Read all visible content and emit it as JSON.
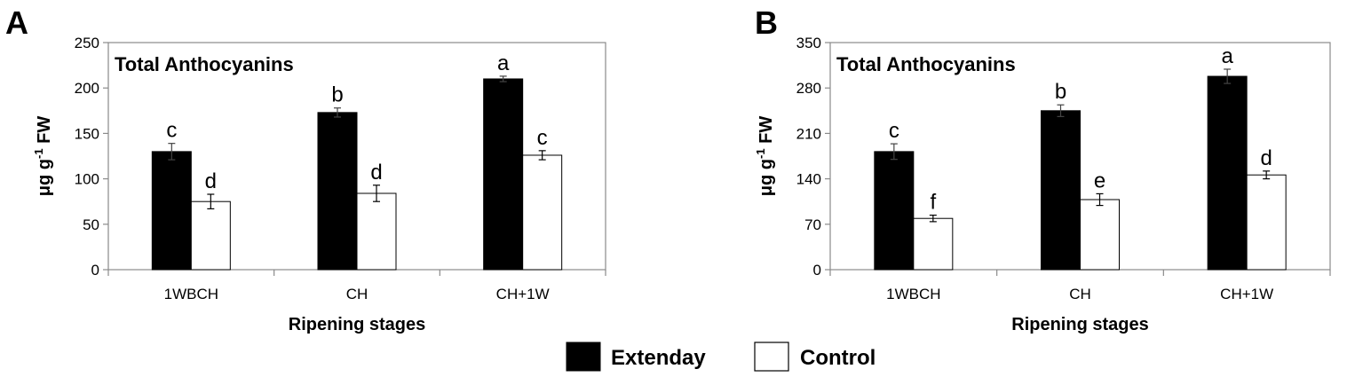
{
  "chart_data": [
    {
      "type": "bar",
      "panel": "A",
      "title": "Total Anthocyanins",
      "xlabel": "Ripening stages",
      "ylabel": "μg g-1 FW",
      "ylabel_parts": {
        "main": "μg g",
        "sup": "-1",
        "tail": " FW"
      },
      "ylim": [
        0,
        250
      ],
      "yticks": [
        0,
        50,
        100,
        150,
        200,
        250
      ],
      "categories": [
        "1WBCH",
        "CH",
        "CH+1W"
      ],
      "series": [
        {
          "name": "Extenday",
          "values": [
            130,
            173,
            210
          ],
          "errors": [
            9,
            5,
            3
          ],
          "labels": [
            "c",
            "b",
            "a"
          ]
        },
        {
          "name": "Control",
          "values": [
            75,
            84,
            126
          ],
          "errors": [
            8,
            9,
            5
          ],
          "labels": [
            "d",
            "d",
            "c"
          ]
        }
      ]
    },
    {
      "type": "bar",
      "panel": "B",
      "title": "Total Anthocyanins",
      "xlabel": "Ripening stages",
      "ylabel": "μg g-1 FW",
      "ylabel_parts": {
        "main": "μg g",
        "sup": "-1",
        "tail": " FW"
      },
      "ylim": [
        0,
        350
      ],
      "yticks": [
        0,
        70,
        140,
        210,
        280,
        350
      ],
      "categories": [
        "1WBCH",
        "CH",
        "CH+1W"
      ],
      "series": [
        {
          "name": "Extenday",
          "values": [
            182,
            245,
            298
          ],
          "errors": [
            12,
            9,
            11
          ],
          "labels": [
            "c",
            "b",
            "a"
          ]
        },
        {
          "name": "Control",
          "values": [
            79,
            108,
            146
          ],
          "errors": [
            5,
            9,
            6
          ],
          "labels": [
            "f",
            "e",
            "d"
          ]
        }
      ]
    }
  ],
  "legend": [
    {
      "name": "Extenday",
      "color": "#000000"
    },
    {
      "name": "Control",
      "color": "#ffffff"
    }
  ]
}
